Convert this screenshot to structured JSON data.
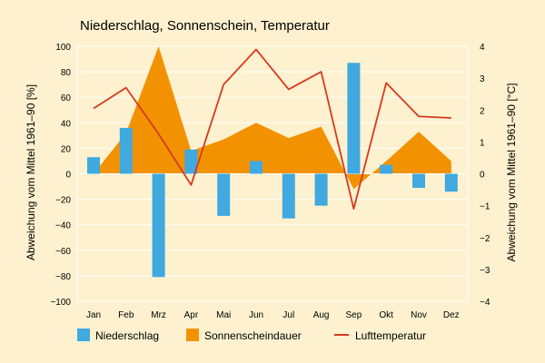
{
  "chart_data": {
    "type": "bar",
    "title": "Niederschlag, Sonnenschein, Temperatur",
    "categories": [
      "Jan",
      "Feb",
      "Mrz",
      "Apr",
      "Mai",
      "Jun",
      "Jul",
      "Aug",
      "Sep",
      "Okt",
      "Nov",
      "Dez"
    ],
    "ylabel_left": "Abweichung vom Mittel 1961–90 [%]",
    "ylabel_right": "Abweichung vom Mittel 1961–90 [°C]",
    "ylim_left": [
      -100,
      100
    ],
    "ylim_right": [
      -4,
      4
    ],
    "yticks_left": [
      "100",
      "80",
      "60",
      "40",
      "20",
      "0",
      "−20",
      "−40",
      "−60",
      "−80",
      "−100"
    ],
    "yticks_right": [
      "4",
      "3",
      "2",
      "1",
      "0",
      "−1",
      "−2",
      "−3",
      "−4"
    ],
    "legend_position": "bottom",
    "series": [
      {
        "name": "Niederschlag",
        "kind": "bar",
        "axis": "left",
        "color": "#3fa9e0",
        "values": [
          13,
          36,
          -81,
          19,
          -33,
          10,
          -35,
          -25,
          87,
          7,
          -11,
          -14
        ]
      },
      {
        "name": "Sonnenscheindauer",
        "kind": "area",
        "axis": "left",
        "color": "#f39200",
        "values": [
          0,
          32,
          100,
          18,
          27,
          40,
          28,
          37,
          -12,
          10,
          33,
          10
        ]
      },
      {
        "name": "Lufttemperatur",
        "kind": "line",
        "axis": "right",
        "color": "#d63a1f",
        "values": [
          2.05,
          2.7,
          1.25,
          -0.35,
          2.8,
          3.9,
          2.65,
          3.2,
          -1.1,
          2.85,
          1.8,
          1.75
        ]
      }
    ]
  }
}
